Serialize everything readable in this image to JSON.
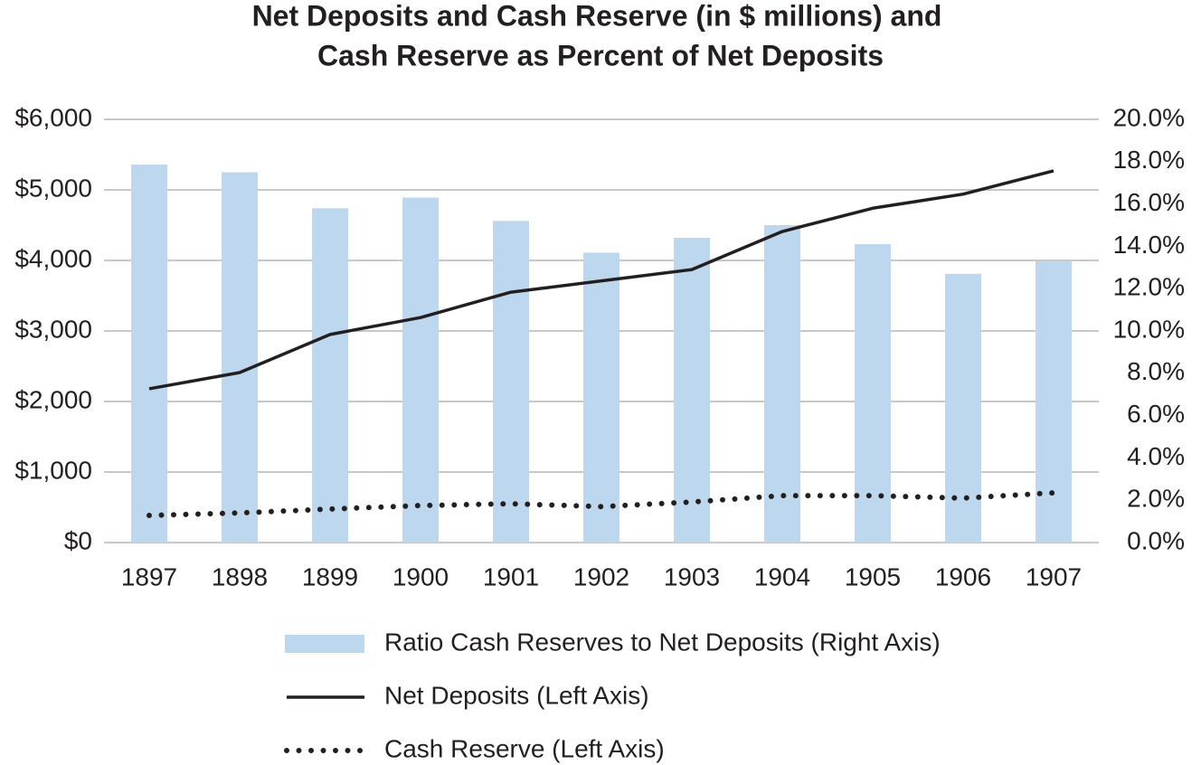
{
  "chart_data": {
    "type": "combo",
    "title": [
      "Net Deposits and Cash Reserve (in $ millions) and",
      "Cash Reserve as Percent of Net Deposits"
    ],
    "categories": [
      "1897",
      "1898",
      "1899",
      "1900",
      "1901",
      "1902",
      "1903",
      "1904",
      "1905",
      "1906",
      "1907"
    ],
    "series": [
      {
        "name": "Ratio Cash Reserves to Net Deposits (Right Axis)",
        "type": "bar",
        "axis": "y2",
        "color": "#bdd7ee",
        "values": [
          17.86,
          17.5,
          15.8,
          16.3,
          15.2,
          13.7,
          14.4,
          15.0,
          14.1,
          12.7,
          13.3
        ]
      },
      {
        "name": "Net Deposits (Left Axis)",
        "type": "line",
        "style": "solid",
        "color": "#231f20",
        "values": [
          2180,
          2410,
          2950,
          3190,
          3550,
          3710,
          3870,
          4410,
          4740,
          4940,
          5270
        ]
      },
      {
        "name": "Cash Reserve (Left Axis)",
        "type": "line",
        "style": "dotted",
        "color": "#231f20",
        "values": [
          385,
          420,
          475,
          525,
          550,
          510,
          575,
          665,
          665,
          630,
          705
        ]
      }
    ],
    "ylim": [
      0,
      6000
    ],
    "yticks": [
      {
        "value": 0,
        "label": "$0"
      },
      {
        "value": 1000,
        "label": "$1,000"
      },
      {
        "value": 2000,
        "label": "$2,000"
      },
      {
        "value": 3000,
        "label": "$3,000"
      },
      {
        "value": 4000,
        "label": "$4,000"
      },
      {
        "value": 5000,
        "label": "$5,000"
      },
      {
        "value": 6000,
        "label": "$6,000"
      }
    ],
    "y2lim": [
      0,
      20
    ],
    "y2ticks": [
      {
        "value": 0,
        "label": "0.0%"
      },
      {
        "value": 2,
        "label": "2.0%"
      },
      {
        "value": 4,
        "label": "4.0%"
      },
      {
        "value": 6,
        "label": "6.0%"
      },
      {
        "value": 8,
        "label": "8.0%"
      },
      {
        "value": 10,
        "label": "10.0%"
      },
      {
        "value": 12,
        "label": "12.0%"
      },
      {
        "value": 14,
        "label": "14.0%"
      },
      {
        "value": 16,
        "label": "16.0%"
      },
      {
        "value": 18,
        "label": "18.0%"
      },
      {
        "value": 20,
        "label": "20.0%"
      }
    ],
    "grid": true,
    "legend": "bottom"
  }
}
